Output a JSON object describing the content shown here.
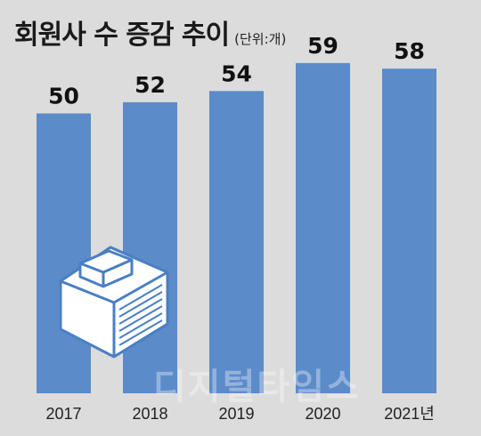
{
  "header": {
    "title": "회원사 수 증감 추이",
    "unit": "(단위:개)"
  },
  "watermark": "디지털타임스",
  "chart_data": {
    "type": "bar",
    "categories": [
      "2017",
      "2018",
      "2019",
      "2020",
      "2021년"
    ],
    "values": [
      50,
      52,
      54,
      59,
      58
    ],
    "bar_color": "#5b8bc9",
    "grid": false,
    "legend": "none",
    "ylim": [
      0,
      62
    ]
  }
}
